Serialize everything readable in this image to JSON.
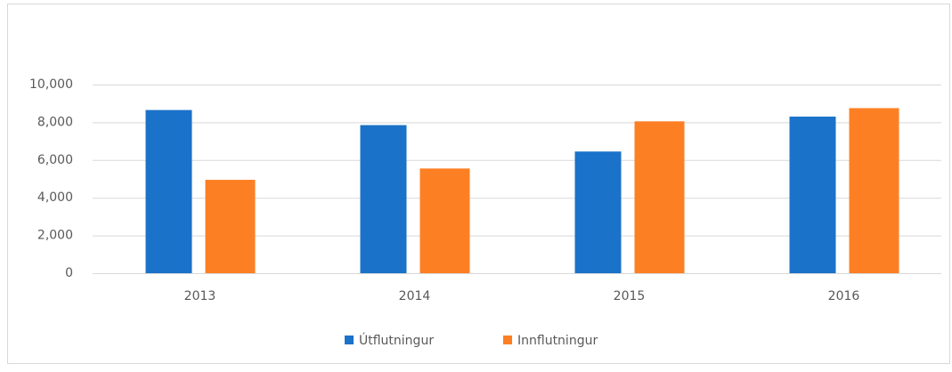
{
  "chart_data": {
    "type": "bar",
    "categories": [
      "2013",
      "2014",
      "2015",
      "2016"
    ],
    "series": [
      {
        "name": "Útflutningur",
        "color": "#1b72c9",
        "values": [
          8650,
          7850,
          6450,
          8300
        ]
      },
      {
        "name": "Innflutningur",
        "color": "#fd7f23",
        "values": [
          4950,
          5550,
          8050,
          8750
        ]
      }
    ],
    "ylim": [
      0,
      10000
    ],
    "yticks": [
      0,
      {
        "value": 2000,
        "label": "2,000"
      },
      {
        "value": 4000,
        "label": "4,000"
      },
      {
        "value": 6000,
        "label": "6,000"
      },
      {
        "value": 8000,
        "label": "8,000"
      },
      {
        "value": 10000,
        "label": "10,000"
      }
    ],
    "grid": true,
    "legend": "bottom"
  }
}
